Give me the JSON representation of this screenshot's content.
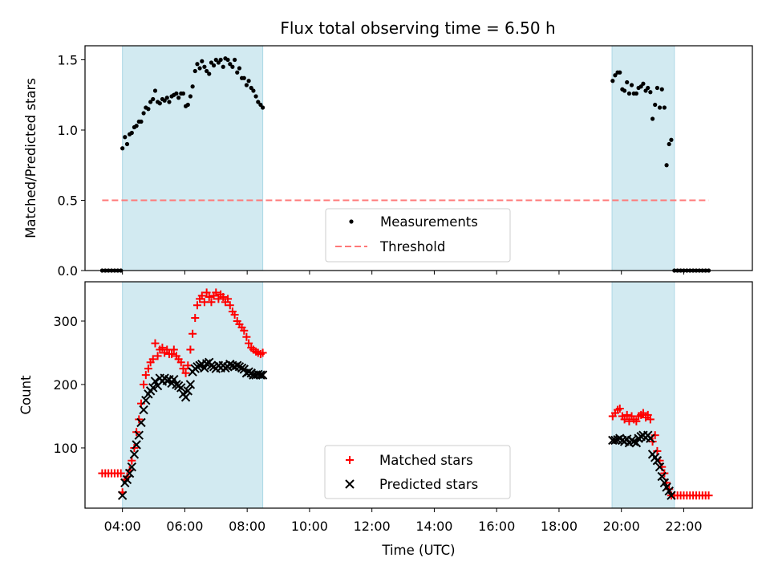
{
  "chart_data": {
    "title": "Flux total observing time = 6.50 h",
    "xlabel": "Time (UTC)",
    "xlim": [
      2.8,
      24.2
    ],
    "xticks": [
      4,
      6,
      8,
      10,
      12,
      14,
      16,
      18,
      20,
      22
    ],
    "xtick_labels": [
      "04:00",
      "06:00",
      "08:00",
      "10:00",
      "12:00",
      "14:00",
      "16:00",
      "18:00",
      "20:00",
      "22:00"
    ],
    "shaded_intervals": [
      [
        4.0,
        8.5
      ],
      [
        19.7,
        21.7
      ]
    ],
    "shade_color": "#add8e6",
    "panels": [
      {
        "type": "scatter",
        "ylabel": "Matched/Predicted stars",
        "ylim": [
          0,
          1.6
        ],
        "yticks": [
          0.0,
          0.5,
          1.0,
          1.5
        ],
        "ytick_labels": [
          "0.0",
          "0.5",
          "1.0",
          "1.5"
        ],
        "legend": "lower-center",
        "series": [
          {
            "name": "Measurements",
            "marker": "dot",
            "color": "#000000",
            "x": [
              3.35,
              3.45,
              3.55,
              3.65,
              3.75,
              3.85,
              3.95,
              4.0,
              4.08,
              4.15,
              4.23,
              4.3,
              4.38,
              4.45,
              4.53,
              4.6,
              4.68,
              4.75,
              4.83,
              4.9,
              4.98,
              5.05,
              5.13,
              5.2,
              5.28,
              5.35,
              5.43,
              5.5,
              5.58,
              5.65,
              5.73,
              5.8,
              5.88,
              5.95,
              6.03,
              6.1,
              6.18,
              6.25,
              6.33,
              6.4,
              6.48,
              6.55,
              6.63,
              6.7,
              6.78,
              6.85,
              6.93,
              7.0,
              7.08,
              7.15,
              7.23,
              7.3,
              7.38,
              7.45,
              7.53,
              7.6,
              7.68,
              7.75,
              7.83,
              7.9,
              7.98,
              8.05,
              8.13,
              8.2,
              8.28,
              8.35,
              8.43,
              8.5,
              19.72,
              19.8,
              19.88,
              19.95,
              20.03,
              20.1,
              20.18,
              20.25,
              20.33,
              20.4,
              20.48,
              20.55,
              20.63,
              20.7,
              20.78,
              20.85,
              20.93,
              21.0,
              21.08,
              21.15,
              21.23,
              21.3,
              21.38,
              21.45,
              21.53,
              21.6,
              21.7,
              21.8,
              21.9,
              22.0,
              22.1,
              22.2,
              22.3,
              22.4,
              22.5,
              22.6,
              22.7,
              22.8
            ],
            "y": [
              0,
              0,
              0,
              0,
              0,
              0,
              0,
              0.87,
              0.95,
              0.9,
              0.97,
              0.98,
              1.02,
              1.03,
              1.06,
              1.06,
              1.12,
              1.16,
              1.15,
              1.2,
              1.22,
              1.28,
              1.2,
              1.19,
              1.22,
              1.21,
              1.23,
              1.2,
              1.24,
              1.25,
              1.26,
              1.23,
              1.26,
              1.26,
              1.17,
              1.18,
              1.24,
              1.31,
              1.42,
              1.47,
              1.44,
              1.49,
              1.45,
              1.42,
              1.4,
              1.48,
              1.46,
              1.5,
              1.48,
              1.5,
              1.45,
              1.51,
              1.5,
              1.47,
              1.45,
              1.5,
              1.41,
              1.44,
              1.37,
              1.37,
              1.32,
              1.35,
              1.3,
              1.28,
              1.24,
              1.2,
              1.18,
              1.16,
              1.35,
              1.39,
              1.41,
              1.41,
              1.29,
              1.28,
              1.34,
              1.26,
              1.32,
              1.26,
              1.26,
              1.3,
              1.31,
              1.33,
              1.28,
              1.3,
              1.27,
              1.08,
              1.18,
              1.3,
              1.16,
              1.29,
              1.16,
              0.75,
              0.9,
              0.93,
              0,
              0,
              0,
              0,
              0,
              0,
              0,
              0,
              0,
              0,
              0,
              0
            ]
          },
          {
            "name": "Threshold",
            "type": "line",
            "dash": "dashed",
            "color": "#ff7878",
            "x": [
              3.35,
              22.8
            ],
            "y": [
              0.5,
              0.5
            ]
          }
        ]
      },
      {
        "type": "scatter",
        "ylabel": "Count",
        "ylim": [
          5,
          362
        ],
        "yticks": [
          100,
          200,
          300
        ],
        "ytick_labels": [
          "100",
          "200",
          "300"
        ],
        "legend": "lower-center",
        "x": [
          3.35,
          3.45,
          3.55,
          3.65,
          3.75,
          3.85,
          3.95,
          4.0,
          4.08,
          4.15,
          4.23,
          4.3,
          4.38,
          4.45,
          4.53,
          4.6,
          4.68,
          4.75,
          4.83,
          4.9,
          4.98,
          5.05,
          5.13,
          5.2,
          5.28,
          5.35,
          5.43,
          5.5,
          5.58,
          5.65,
          5.73,
          5.8,
          5.88,
          5.95,
          6.03,
          6.1,
          6.18,
          6.25,
          6.33,
          6.4,
          6.48,
          6.55,
          6.63,
          6.7,
          6.78,
          6.85,
          6.93,
          7.0,
          7.08,
          7.15,
          7.23,
          7.3,
          7.38,
          7.45,
          7.53,
          7.6,
          7.68,
          7.75,
          7.83,
          7.9,
          7.98,
          8.05,
          8.13,
          8.2,
          8.28,
          8.35,
          8.43,
          8.5,
          19.72,
          19.8,
          19.88,
          19.95,
          20.03,
          20.1,
          20.18,
          20.25,
          20.33,
          20.4,
          20.48,
          20.55,
          20.63,
          20.7,
          20.78,
          20.85,
          20.93,
          21.0,
          21.08,
          21.15,
          21.23,
          21.3,
          21.38,
          21.45,
          21.53,
          21.6,
          21.7,
          21.8,
          21.9,
          22.0,
          22.1,
          22.2,
          22.3,
          22.4,
          22.5,
          22.6,
          22.7,
          22.8
        ],
        "series": [
          {
            "name": "Matched stars",
            "marker": "plus",
            "color": "#ff0000",
            "values": [
              60,
              60,
              60,
              60,
              60,
              60,
              60,
              30,
              50,
              55,
              65,
              80,
              100,
              125,
              145,
              170,
              200,
              215,
              225,
              235,
              240,
              265,
              245,
              255,
              258,
              250,
              255,
              248,
              248,
              255,
              245,
              240,
              235,
              225,
              218,
              230,
              255,
              280,
              305,
              325,
              335,
              340,
              330,
              345,
              338,
              330,
              340,
              345,
              335,
              342,
              338,
              330,
              335,
              325,
              315,
              310,
              300,
              295,
              290,
              285,
              275,
              265,
              258,
              255,
              252,
              250,
              248,
              250,
              150,
              155,
              160,
              162,
              150,
              145,
              152,
              142,
              150,
              145,
              142,
              150,
              152,
              155,
              148,
              152,
              145,
              110,
              120,
              95,
              80,
              70,
              60,
              45,
              35,
              25,
              25,
              25,
              25,
              25,
              25,
              25,
              25,
              25,
              25,
              25,
              25,
              25
            ]
          },
          {
            "name": "Predicted stars",
            "marker": "x",
            "color": "#000000",
            "values": [
              null,
              null,
              null,
              null,
              null,
              null,
              null,
              25,
              45,
              50,
              60,
              70,
              90,
              105,
              120,
              140,
              160,
              175,
              185,
              190,
              195,
              205,
              198,
              210,
              205,
              210,
              206,
              208,
              202,
              208,
              200,
              198,
              195,
              185,
              180,
              190,
              200,
              220,
              225,
              228,
              230,
              232,
              226,
              233,
              235,
              230,
              228,
              225,
              230,
              226,
              230,
              226,
              228,
              232,
              230,
              228,
              230,
              228,
              226,
              224,
              218,
              220,
              218,
              215,
              215,
              216,
              215,
              215,
              112,
              112,
              113,
              115,
              112,
              110,
              114,
              108,
              112,
              110,
              108,
              115,
              118,
              120,
              116,
              120,
              115,
              90,
              85,
              80,
              70,
              55,
              45,
              38,
              32,
              25,
              null,
              null,
              null,
              null,
              null,
              null,
              null,
              null,
              null,
              null,
              null,
              null
            ]
          }
        ]
      }
    ]
  }
}
